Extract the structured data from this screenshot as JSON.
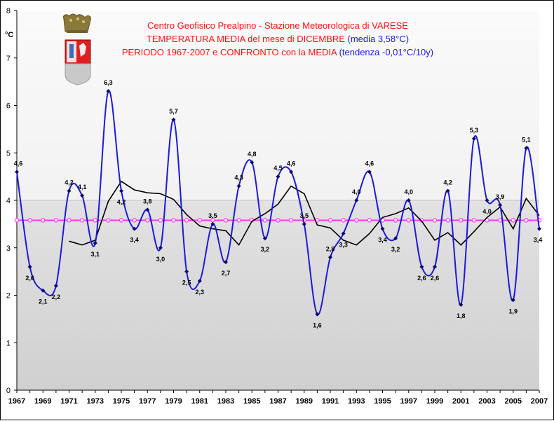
{
  "unit_label": "°C",
  "title": {
    "line1": "Centro Geofisico Prealpino - Stazione Meteorologica di VARESE",
    "line2_red": "TEMPERATURA MEDIA del mese di DICEMBRE ",
    "line2_blue": "(media 3,58°C)",
    "line3_red": "PERIODO 1967-2007 e CONFRONTO con la MEDIA ",
    "line3_blue": "(tendenza -0,01°C/10y)"
  },
  "colors": {
    "series": "#1a1ae0",
    "moving_average": "#000000",
    "mean_line": "#ff33ff",
    "mean_marker_fill": "#ffffff",
    "plot_background": "#d9d9d9",
    "title_red": "#ff1010",
    "title_blue": "#1a1ae0"
  },
  "chart_data": {
    "type": "line",
    "x": [
      1967,
      1968,
      1969,
      1970,
      1971,
      1972,
      1973,
      1974,
      1975,
      1976,
      1977,
      1978,
      1979,
      1980,
      1981,
      1982,
      1983,
      1984,
      1985,
      1986,
      1987,
      1988,
      1989,
      1990,
      1991,
      1992,
      1993,
      1994,
      1995,
      1996,
      1997,
      1998,
      1999,
      2000,
      2001,
      2002,
      2003,
      2004,
      2005,
      2006,
      2007
    ],
    "xlim": [
      1967,
      2007
    ],
    "ylim": [
      0,
      8
    ],
    "x_ticks": [
      1967,
      1969,
      1971,
      1973,
      1975,
      1977,
      1979,
      1981,
      1983,
      1985,
      1987,
      1989,
      1991,
      1993,
      1995,
      1997,
      1999,
      2001,
      2003,
      2005,
      2007
    ],
    "y_ticks": [
      0,
      1,
      2,
      3,
      4,
      5,
      6,
      7,
      8
    ],
    "grid": "horizontal band above 4",
    "series": [
      {
        "role": "temperature",
        "smooth": true,
        "values": [
          4.6,
          2.6,
          2.1,
          2.2,
          4.2,
          4.1,
          3.1,
          6.3,
          4.2,
          3.4,
          3.8,
          3.0,
          5.7,
          2.5,
          2.3,
          3.5,
          2.7,
          4.3,
          4.8,
          3.2,
          4.5,
          4.6,
          3.5,
          1.6,
          2.8,
          3.3,
          4.0,
          4.6,
          3.4,
          3.2,
          4.0,
          2.6,
          2.6,
          4.2,
          1.8,
          5.3,
          4.0,
          3.9,
          1.9,
          5.1,
          3.4
        ],
        "labels": [
          "4,6",
          "2,6",
          "2,1",
          "2,2",
          "4,2",
          "4,1",
          "3,1",
          "6,3",
          "4,2",
          "3,4",
          "3,8",
          "3,0",
          "5,7",
          "2,5",
          "2,3",
          "3,5",
          "2,7",
          "4,3",
          "4,8",
          "3,2",
          "4,5",
          "4,6",
          "3,5",
          "1,6",
          "2,8",
          "3,3",
          "4,0",
          "4,6",
          "3,4",
          "3,2",
          "4,0",
          "2,6",
          "2,6",
          "4,2",
          "1,8",
          "5,3",
          "4,0",
          "3,9",
          "1,9",
          "5,1",
          "3,4"
        ]
      },
      {
        "role": "moving-average",
        "x": [
          1971,
          1972,
          1973,
          1974,
          1975,
          1976,
          1977,
          1978,
          1979,
          1980,
          1981,
          1982,
          1983,
          1984,
          1985,
          1986,
          1987,
          1988,
          1989,
          1990,
          1991,
          1992,
          1993,
          1994,
          1995,
          1996,
          1997,
          1998,
          1999,
          2000,
          2001,
          2002,
          2003,
          2004,
          2005,
          2006,
          2007
        ],
        "values": [
          3.14,
          3.06,
          3.16,
          3.98,
          4.4,
          4.22,
          4.16,
          4.14,
          4.02,
          3.7,
          3.46,
          3.4,
          3.36,
          3.06,
          3.56,
          3.72,
          3.92,
          4.3,
          4.14,
          3.48,
          3.42,
          3.16,
          3.06,
          3.3,
          3.64,
          3.72,
          3.84,
          3.56,
          3.16,
          3.32,
          3.06,
          3.34,
          3.64,
          3.86,
          3.4,
          4.04,
          3.68
        ]
      },
      {
        "role": "mean",
        "value": 3.58
      }
    ]
  }
}
